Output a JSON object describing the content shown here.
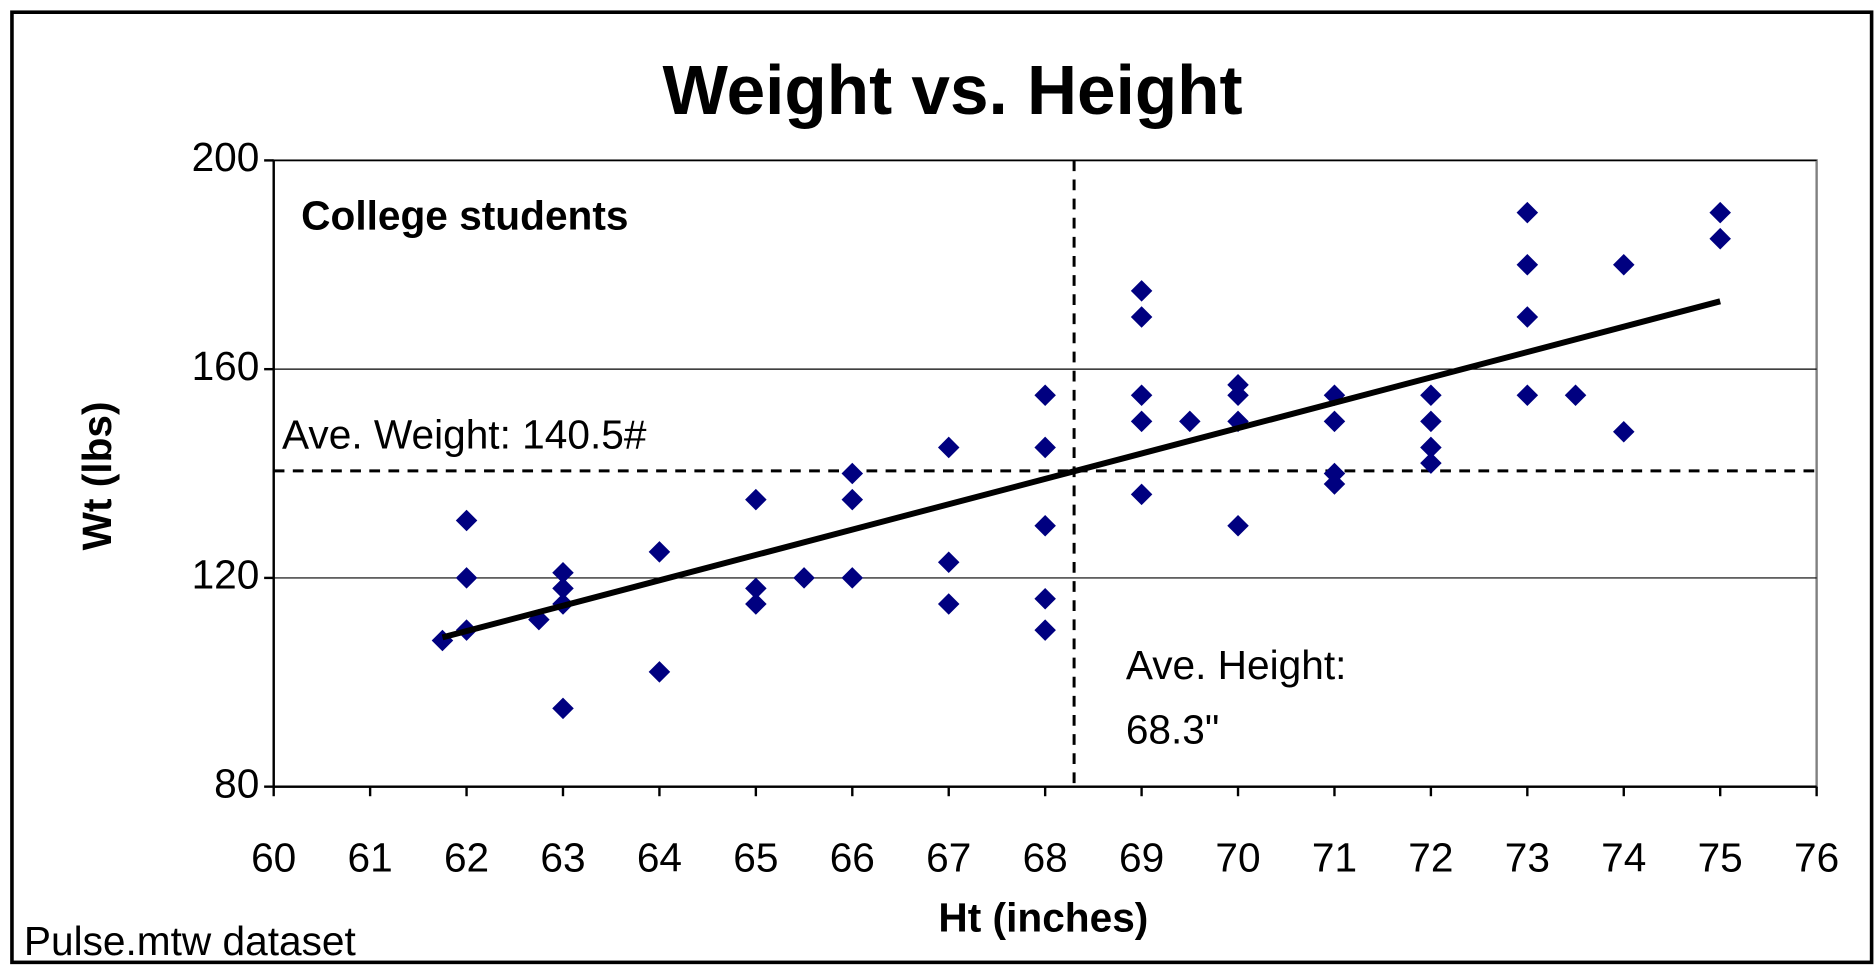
{
  "chart_data": {
    "type": "scatter",
    "title": "Weight vs. Height",
    "xlabel": "Ht (inches)",
    "ylabel": "Wt (lbs)",
    "xlim": [
      60,
      76
    ],
    "xticks": [
      60,
      61,
      62,
      63,
      64,
      65,
      66,
      67,
      68,
      69,
      70,
      71,
      72,
      73,
      74,
      75,
      76
    ],
    "ylim": [
      80,
      200
    ],
    "yticks": [
      80,
      120,
      160,
      200
    ],
    "grid": true,
    "series": [
      {
        "color": "#000080",
        "x": [
          61.75,
          62,
          62,
          62,
          62.75,
          63,
          63,
          63,
          63,
          64,
          64,
          65,
          65,
          65,
          65.5,
          66,
          66,
          66,
          67,
          67,
          67,
          68,
          68,
          68,
          68,
          68,
          69,
          69,
          69,
          69,
          69,
          69.5,
          70,
          70,
          70,
          70,
          71,
          71,
          71,
          71,
          72,
          72,
          72,
          72,
          73,
          73,
          73,
          73,
          73.5,
          74,
          74,
          75,
          75
        ],
        "y": [
          108,
          131,
          120,
          110,
          112,
          121,
          118,
          115,
          95,
          125,
          102,
          135,
          118,
          115,
          120,
          140,
          135,
          120,
          145,
          123,
          115,
          155,
          145,
          130,
          116,
          110,
          175,
          170,
          155,
          150,
          136,
          150,
          157,
          155,
          150,
          130,
          155,
          150,
          140,
          138,
          155,
          150,
          145,
          142,
          190,
          180,
          170,
          155,
          155,
          180,
          148,
          190,
          185
        ]
      }
    ],
    "trendline": {
      "color": "#000000",
      "x": [
        61.75,
        75
      ],
      "y": [
        108.6,
        173
      ]
    },
    "hline": 140.5,
    "vline": 68.3,
    "annotations": [
      "College students",
      "Ave. Weight: 140.5#",
      "Ave. Height:",
      "68.3\"",
      "Pulse.mtw dataset"
    ]
  }
}
